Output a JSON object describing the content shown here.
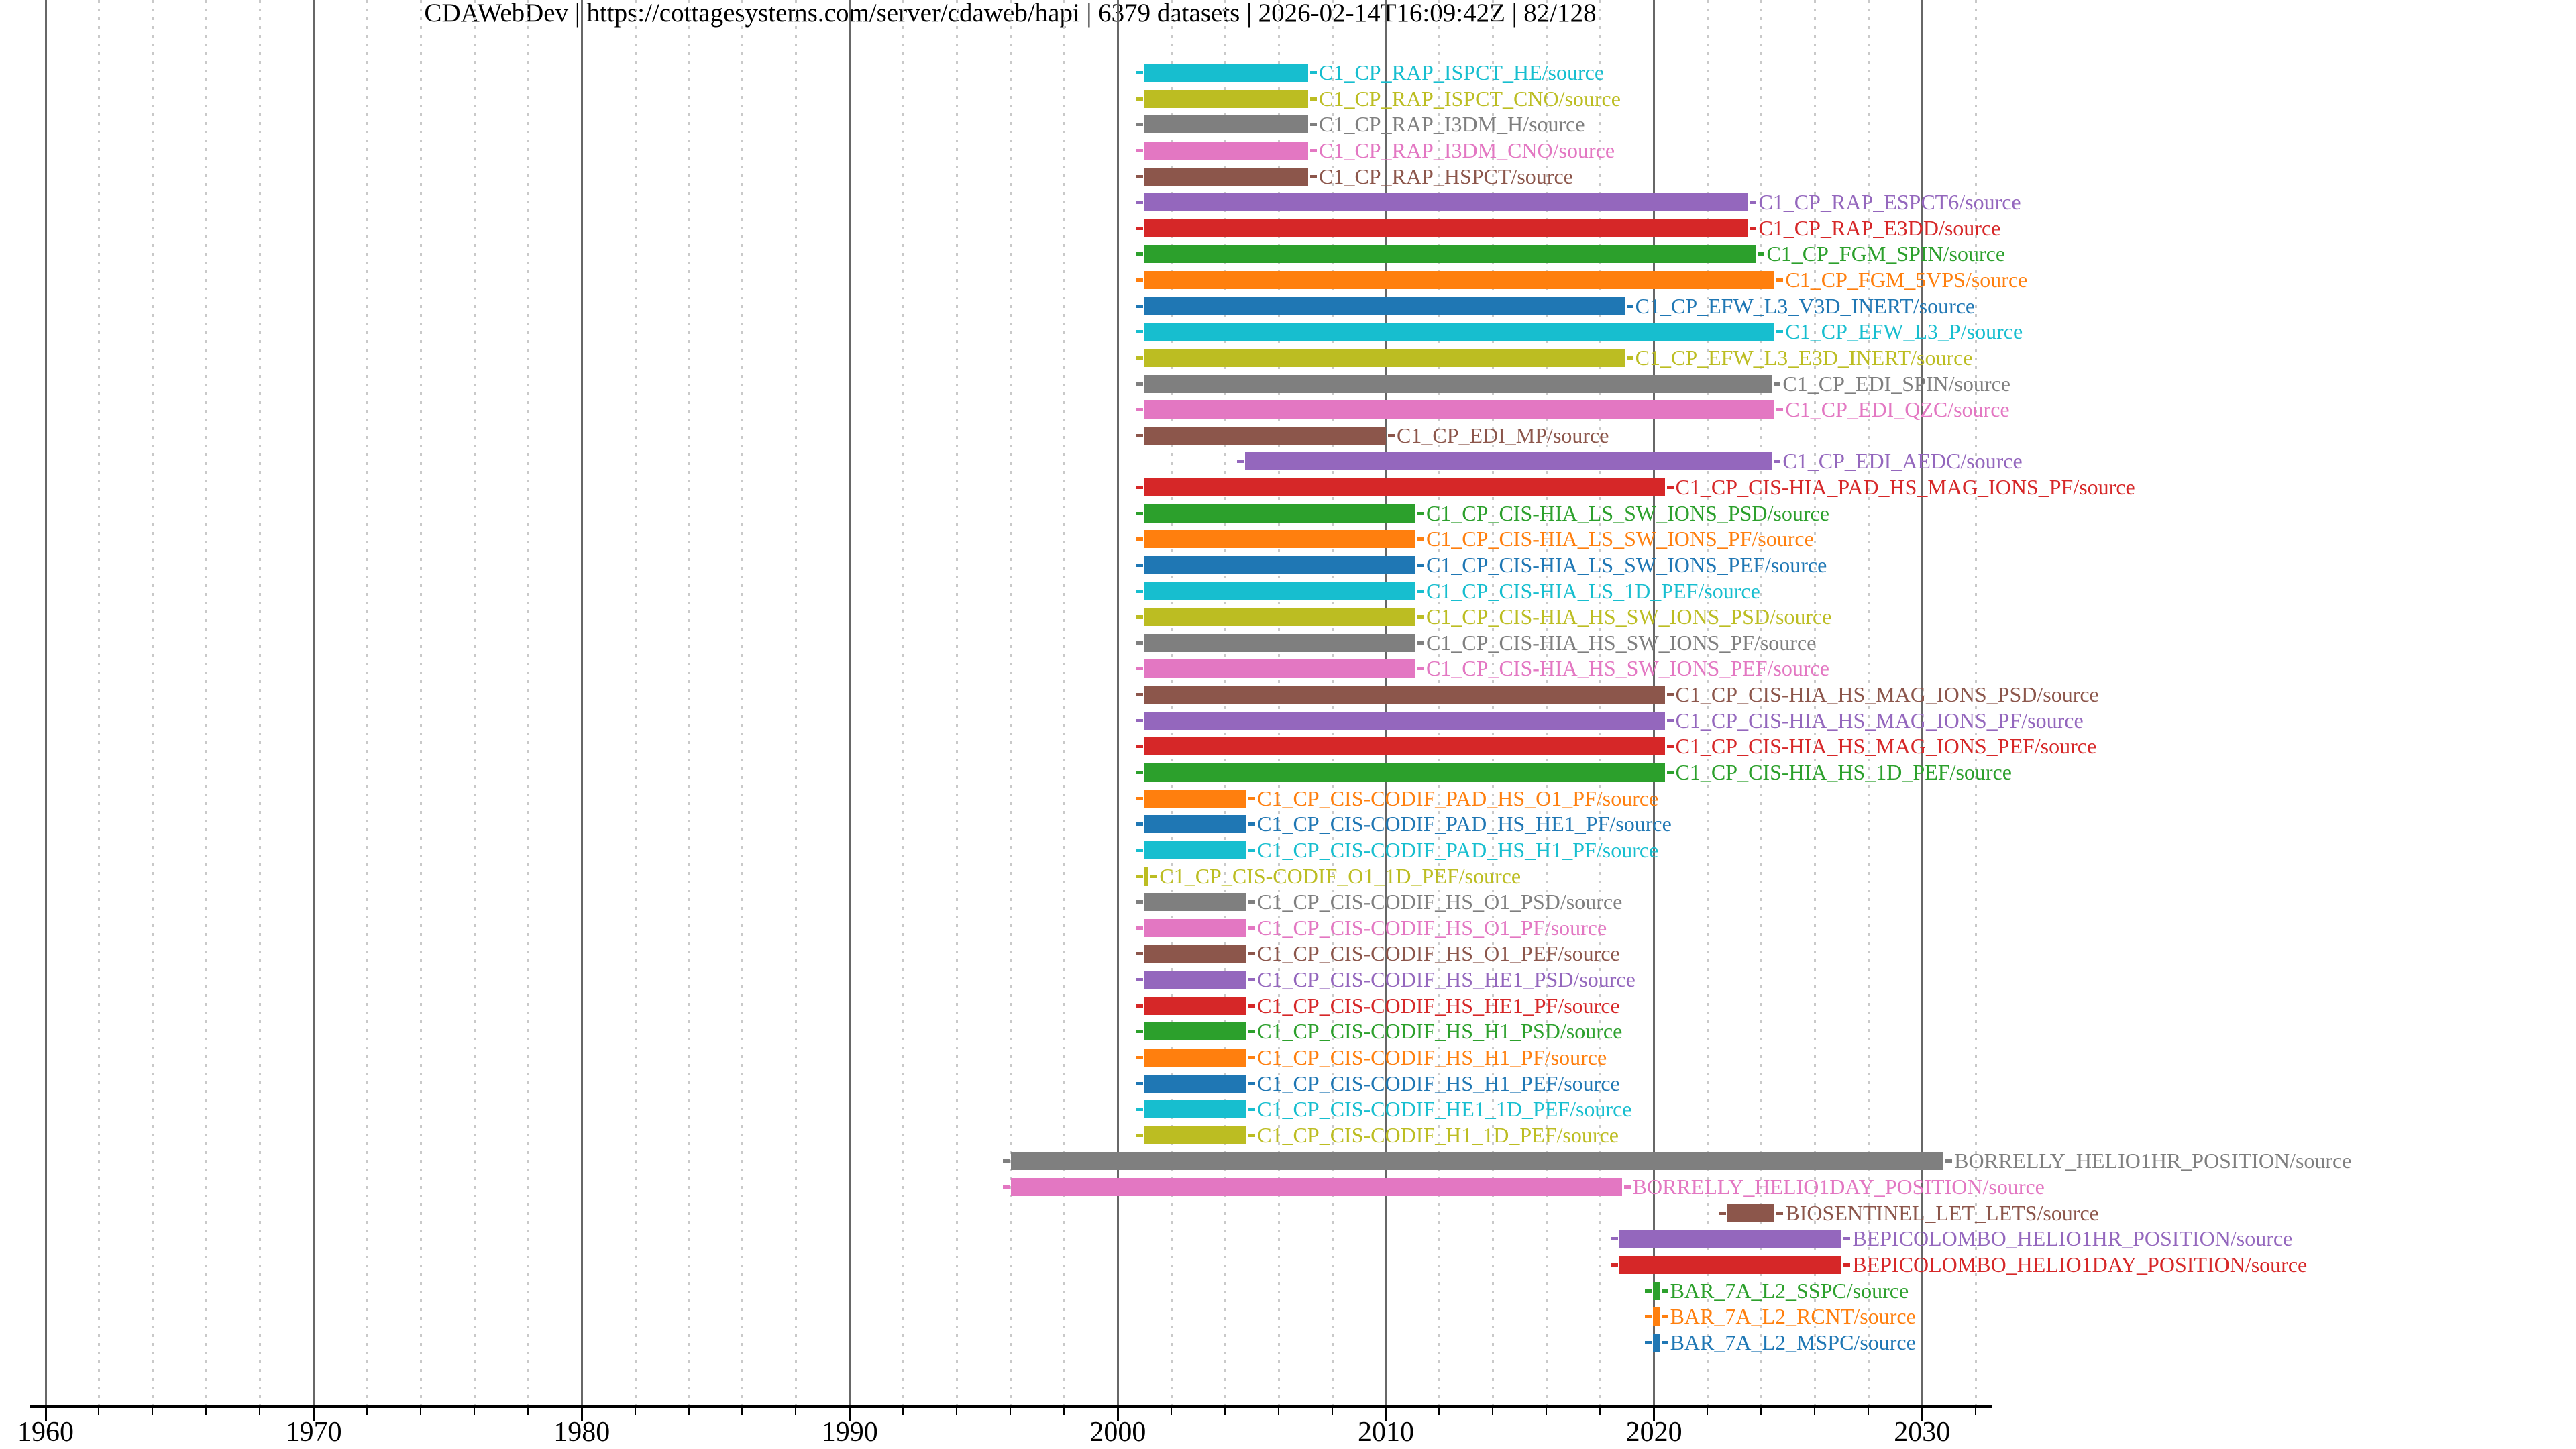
{
  "title": "CDAWebDev | https://cottagesystems.com/server/cdaweb/hapi | 6379 datasets | 2026-02-14T16:09:42Z | 82/128",
  "chart_data": {
    "type": "bar",
    "variant": "horizontal-interval-timeline",
    "title": "CDAWebDev | https://cottagesystems.com/server/cdaweb/hapi | 6379 datasets | 2026-02-14T16:09:42Z | 82/128",
    "xlabel": "",
    "ylabel": "",
    "x_axis": {
      "xlim": [
        1959.4,
        2032.6
      ],
      "labeled_ticks": [
        1960,
        1970,
        1980,
        1990,
        2000,
        2010,
        2020,
        2030
      ],
      "tick_start": 1960,
      "tick_end": 2032,
      "minor_tick_step_years": 2,
      "grid": "solid gray line each decade, dotted light line every 2 years",
      "gridline_color_major": "#676767",
      "gridline_color_minor": "#c9c9c9"
    },
    "legend": "none",
    "label_suffix": "/source",
    "palette_tab10": {
      "blue": "#1f77b4",
      "orange": "#ff7f0e",
      "green": "#2ca02c",
      "red": "#d62728",
      "purple": "#9467bd",
      "brown": "#8c564b",
      "pink": "#e377c2",
      "gray": "#7f7f7f",
      "olive": "#bcbd22",
      "cyan": "#17becf"
    },
    "rows": [
      {
        "label": "C1_CP_RAP_ISPCT_HE/source",
        "color": "#17becf",
        "start": 2001.0,
        "end": 2007.1
      },
      {
        "label": "C1_CP_RAP_ISPCT_CNO/source",
        "color": "#bcbd22",
        "start": 2001.0,
        "end": 2007.1
      },
      {
        "label": "C1_CP_RAP_I3DM_H/source",
        "color": "#7f7f7f",
        "start": 2001.0,
        "end": 2007.1
      },
      {
        "label": "C1_CP_RAP_I3DM_CNO/source",
        "color": "#e377c2",
        "start": 2001.0,
        "end": 2007.1
      },
      {
        "label": "C1_CP_RAP_HSPCT/source",
        "color": "#8c564b",
        "start": 2001.0,
        "end": 2007.1
      },
      {
        "label": "C1_CP_RAP_ESPCT6/source",
        "color": "#9467bd",
        "start": 2001.0,
        "end": 2023.5
      },
      {
        "label": "C1_CP_RAP_E3DD/source",
        "color": "#d62728",
        "start": 2001.0,
        "end": 2023.5
      },
      {
        "label": "C1_CP_FGM_SPIN/source",
        "color": "#2ca02c",
        "start": 2001.0,
        "end": 2023.8
      },
      {
        "label": "C1_CP_FGM_5VPS/source",
        "color": "#ff7f0e",
        "start": 2001.0,
        "end": 2024.5
      },
      {
        "label": "C1_CP_EFW_L3_V3D_INERT/source",
        "color": "#1f77b4",
        "start": 2001.0,
        "end": 2018.9
      },
      {
        "label": "C1_CP_EFW_L3_P/source",
        "color": "#17becf",
        "start": 2001.0,
        "end": 2024.5
      },
      {
        "label": "C1_CP_EFW_L3_E3D_INERT/source",
        "color": "#bcbd22",
        "start": 2001.0,
        "end": 2018.9
      },
      {
        "label": "C1_CP_EDI_SPIN/source",
        "color": "#7f7f7f",
        "start": 2001.0,
        "end": 2024.4
      },
      {
        "label": "C1_CP_EDI_QZC/source",
        "color": "#e377c2",
        "start": 2001.0,
        "end": 2024.5
      },
      {
        "label": "C1_CP_EDI_MP/source",
        "color": "#8c564b",
        "start": 2001.0,
        "end": 2010.0
      },
      {
        "label": "C1_CP_EDI_AEDC/source",
        "color": "#9467bd",
        "start": 2004.75,
        "end": 2024.4
      },
      {
        "label": "C1_CP_CIS-HIA_PAD_HS_MAG_IONS_PF/source",
        "color": "#d62728",
        "start": 2001.0,
        "end": 2020.4
      },
      {
        "label": "C1_CP_CIS-HIA_LS_SW_IONS_PSD/source",
        "color": "#2ca02c",
        "start": 2001.0,
        "end": 2011.1
      },
      {
        "label": "C1_CP_CIS-HIA_LS_SW_IONS_PF/source",
        "color": "#ff7f0e",
        "start": 2001.0,
        "end": 2011.1
      },
      {
        "label": "C1_CP_CIS-HIA_LS_SW_IONS_PEF/source",
        "color": "#1f77b4",
        "start": 2001.0,
        "end": 2011.1
      },
      {
        "label": "C1_CP_CIS-HIA_LS_1D_PEF/source",
        "color": "#17becf",
        "start": 2001.0,
        "end": 2011.1
      },
      {
        "label": "C1_CP_CIS-HIA_HS_SW_IONS_PSD/source",
        "color": "#bcbd22",
        "start": 2001.0,
        "end": 2011.1
      },
      {
        "label": "C1_CP_CIS-HIA_HS_SW_IONS_PF/source",
        "color": "#7f7f7f",
        "start": 2001.0,
        "end": 2011.1
      },
      {
        "label": "C1_CP_CIS-HIA_HS_SW_IONS_PEF/source",
        "color": "#e377c2",
        "start": 2001.0,
        "end": 2011.1
      },
      {
        "label": "C1_CP_CIS-HIA_HS_MAG_IONS_PSD/source",
        "color": "#8c564b",
        "start": 2001.0,
        "end": 2020.4
      },
      {
        "label": "C1_CP_CIS-HIA_HS_MAG_IONS_PF/source",
        "color": "#9467bd",
        "start": 2001.0,
        "end": 2020.4
      },
      {
        "label": "C1_CP_CIS-HIA_HS_MAG_IONS_PEF/source",
        "color": "#d62728",
        "start": 2001.0,
        "end": 2020.4
      },
      {
        "label": "C1_CP_CIS-HIA_HS_1D_PEF/source",
        "color": "#2ca02c",
        "start": 2001.0,
        "end": 2020.4
      },
      {
        "label": "C1_CP_CIS-CODIF_PAD_HS_O1_PF/source",
        "color": "#ff7f0e",
        "start": 2001.0,
        "end": 2004.8
      },
      {
        "label": "C1_CP_CIS-CODIF_PAD_HS_HE1_PF/source",
        "color": "#1f77b4",
        "start": 2001.0,
        "end": 2004.8
      },
      {
        "label": "C1_CP_CIS-CODIF_PAD_HS_H1_PF/source",
        "color": "#17becf",
        "start": 2001.0,
        "end": 2004.8
      },
      {
        "label": "C1_CP_CIS-CODIF_O1_1D_PEF/source",
        "color": "#bcbd22",
        "start": 2001.0,
        "end": 2001.15
      },
      {
        "label": "C1_CP_CIS-CODIF_HS_O1_PSD/source",
        "color": "#7f7f7f",
        "start": 2001.0,
        "end": 2004.8
      },
      {
        "label": "C1_CP_CIS-CODIF_HS_O1_PF/source",
        "color": "#e377c2",
        "start": 2001.0,
        "end": 2004.8
      },
      {
        "label": "C1_CP_CIS-CODIF_HS_O1_PEF/source",
        "color": "#8c564b",
        "start": 2001.0,
        "end": 2004.8
      },
      {
        "label": "C1_CP_CIS-CODIF_HS_HE1_PSD/source",
        "color": "#9467bd",
        "start": 2001.0,
        "end": 2004.8
      },
      {
        "label": "C1_CP_CIS-CODIF_HS_HE1_PF/source",
        "color": "#d62728",
        "start": 2001.0,
        "end": 2004.8
      },
      {
        "label": "C1_CP_CIS-CODIF_HS_H1_PSD/source",
        "color": "#2ca02c",
        "start": 2001.0,
        "end": 2004.8
      },
      {
        "label": "C1_CP_CIS-CODIF_HS_H1_PF/source",
        "color": "#ff7f0e",
        "start": 2001.0,
        "end": 2004.8
      },
      {
        "label": "C1_CP_CIS-CODIF_HS_H1_PEF/source",
        "color": "#1f77b4",
        "start": 2001.0,
        "end": 2004.8
      },
      {
        "label": "C1_CP_CIS-CODIF_HE1_1D_PEF/source",
        "color": "#17becf",
        "start": 2001.0,
        "end": 2004.8
      },
      {
        "label": "C1_CP_CIS-CODIF_H1_1D_PEF/source",
        "color": "#bcbd22",
        "start": 2001.0,
        "end": 2004.8
      },
      {
        "label": "BORRELLY_HELIO1HR_POSITION/source",
        "color": "#7f7f7f",
        "start": 1996.0,
        "end": 2030.8
      },
      {
        "label": "BORRELLY_HELIO1DAY_POSITION/source",
        "color": "#e377c2",
        "start": 1996.0,
        "end": 2018.8
      },
      {
        "label": "BIOSENTINEL_LET_LETS/source",
        "color": "#8c564b",
        "start": 2022.75,
        "end": 2024.5
      },
      {
        "label": "BEPICOLOMBO_HELIO1HR_POSITION/source",
        "color": "#9467bd",
        "start": 2018.7,
        "end": 2027.0
      },
      {
        "label": "BEPICOLOMBO_HELIO1DAY_POSITION/source",
        "color": "#d62728",
        "start": 2018.7,
        "end": 2027.0
      },
      {
        "label": "BAR_7A_L2_SSPC/source",
        "color": "#2ca02c",
        "start": 2019.95,
        "end": 2020.2
      },
      {
        "label": "BAR_7A_L2_RCNT/source",
        "color": "#ff7f0e",
        "start": 2019.95,
        "end": 2020.2
      },
      {
        "label": "BAR_7A_L2_MSPC/source",
        "color": "#1f77b4",
        "start": 2019.95,
        "end": 2020.2
      }
    ]
  }
}
